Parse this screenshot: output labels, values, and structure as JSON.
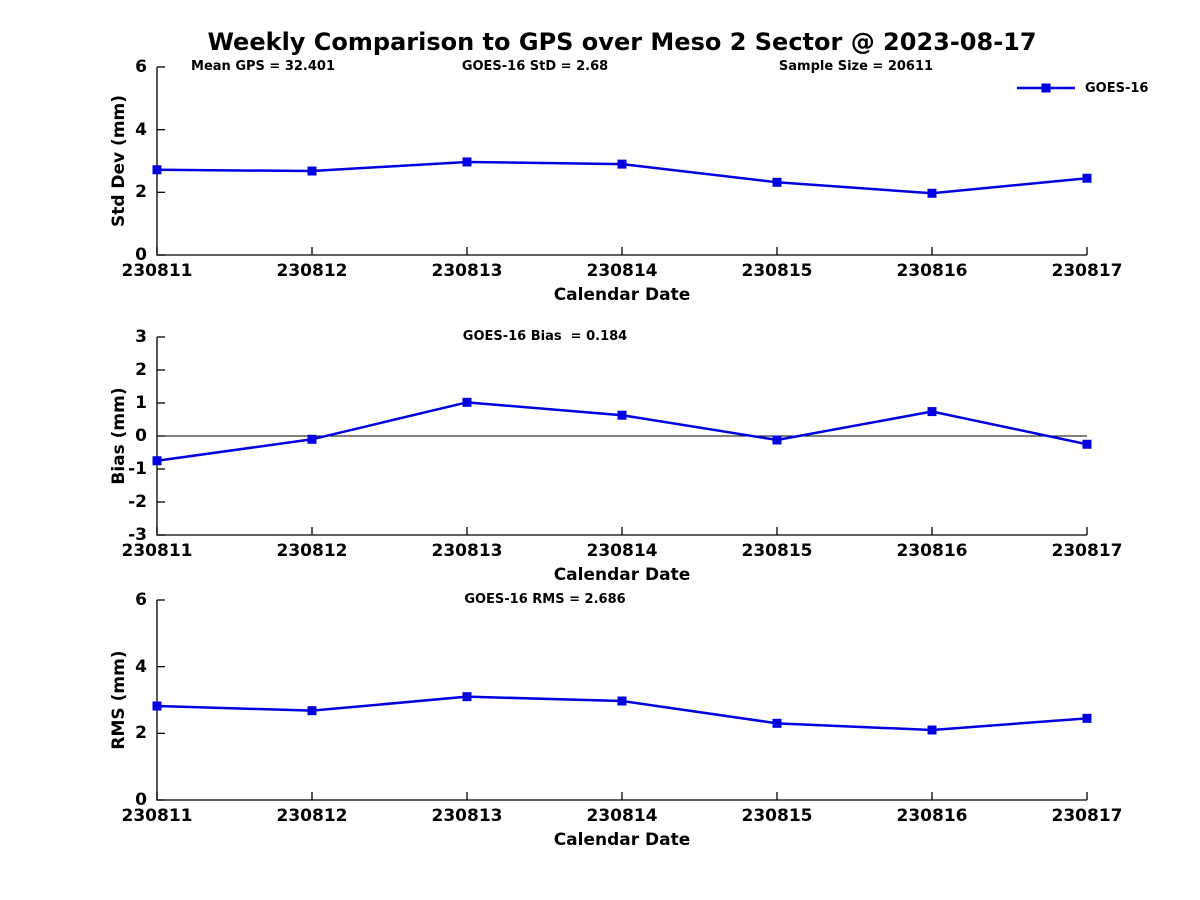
{
  "title": "Weekly Comparison to GPS over Meso 2 Sector @ 2023-08-17",
  "colors": {
    "line": "#0000e0",
    "axis": "#000000",
    "text": "#000000",
    "background": "#ffffff"
  },
  "legend": {
    "label": "GOES-16",
    "position": "top-right-above-first-plot",
    "marker": "filled-square"
  },
  "chart_data": [
    {
      "type": "line",
      "title": "",
      "categories": [
        "230811",
        "230812",
        "230813",
        "230814",
        "230815",
        "230816",
        "230817"
      ],
      "series": [
        {
          "name": "GOES-16",
          "values": [
            2.72,
            2.68,
            2.97,
            2.9,
            2.32,
            1.97,
            2.45
          ]
        }
      ],
      "xlabel": "Calendar Date",
      "ylabel": "Std Dev (mm)",
      "ylim": [
        0,
        6
      ],
      "yticks": [
        0,
        2,
        4,
        6
      ],
      "zero_line": false,
      "grid": false,
      "marker": "square",
      "annotations": [
        {
          "text": "Mean GPS = 32.401",
          "x": 263
        },
        {
          "text": "GOES-16 StD = 2.68",
          "x": 535
        },
        {
          "text": "Sample Size = 20611",
          "x": 856
        }
      ]
    },
    {
      "type": "line",
      "title": "",
      "categories": [
        "230811",
        "230812",
        "230813",
        "230814",
        "230815",
        "230816",
        "230817"
      ],
      "series": [
        {
          "name": "GOES-16",
          "values": [
            -0.75,
            -0.1,
            1.02,
            0.63,
            -0.12,
            0.74,
            -0.25
          ]
        }
      ],
      "xlabel": "Calendar Date",
      "ylabel": "Bias (mm)",
      "ylim": [
        -3,
        3
      ],
      "yticks": [
        3,
        2,
        1,
        0,
        -1,
        -2,
        -3
      ],
      "zero_line": true,
      "grid": false,
      "marker": "square",
      "annotations": [
        {
          "text": "GOES-16 Bias  = 0.184",
          "x": 545
        }
      ]
    },
    {
      "type": "line",
      "title": "",
      "categories": [
        "230811",
        "230812",
        "230813",
        "230814",
        "230815",
        "230816",
        "230817"
      ],
      "series": [
        {
          "name": "GOES-16",
          "values": [
            2.82,
            2.68,
            3.1,
            2.97,
            2.3,
            2.1,
            2.45
          ]
        }
      ],
      "xlabel": "Calendar Date",
      "ylabel": "RMS (mm)",
      "ylim": [
        0,
        6
      ],
      "yticks": [
        0,
        2,
        4,
        6
      ],
      "zero_line": false,
      "grid": false,
      "marker": "square",
      "annotations": [
        {
          "text": "GOES-16 RMS = 2.686",
          "x": 545
        }
      ]
    }
  ]
}
